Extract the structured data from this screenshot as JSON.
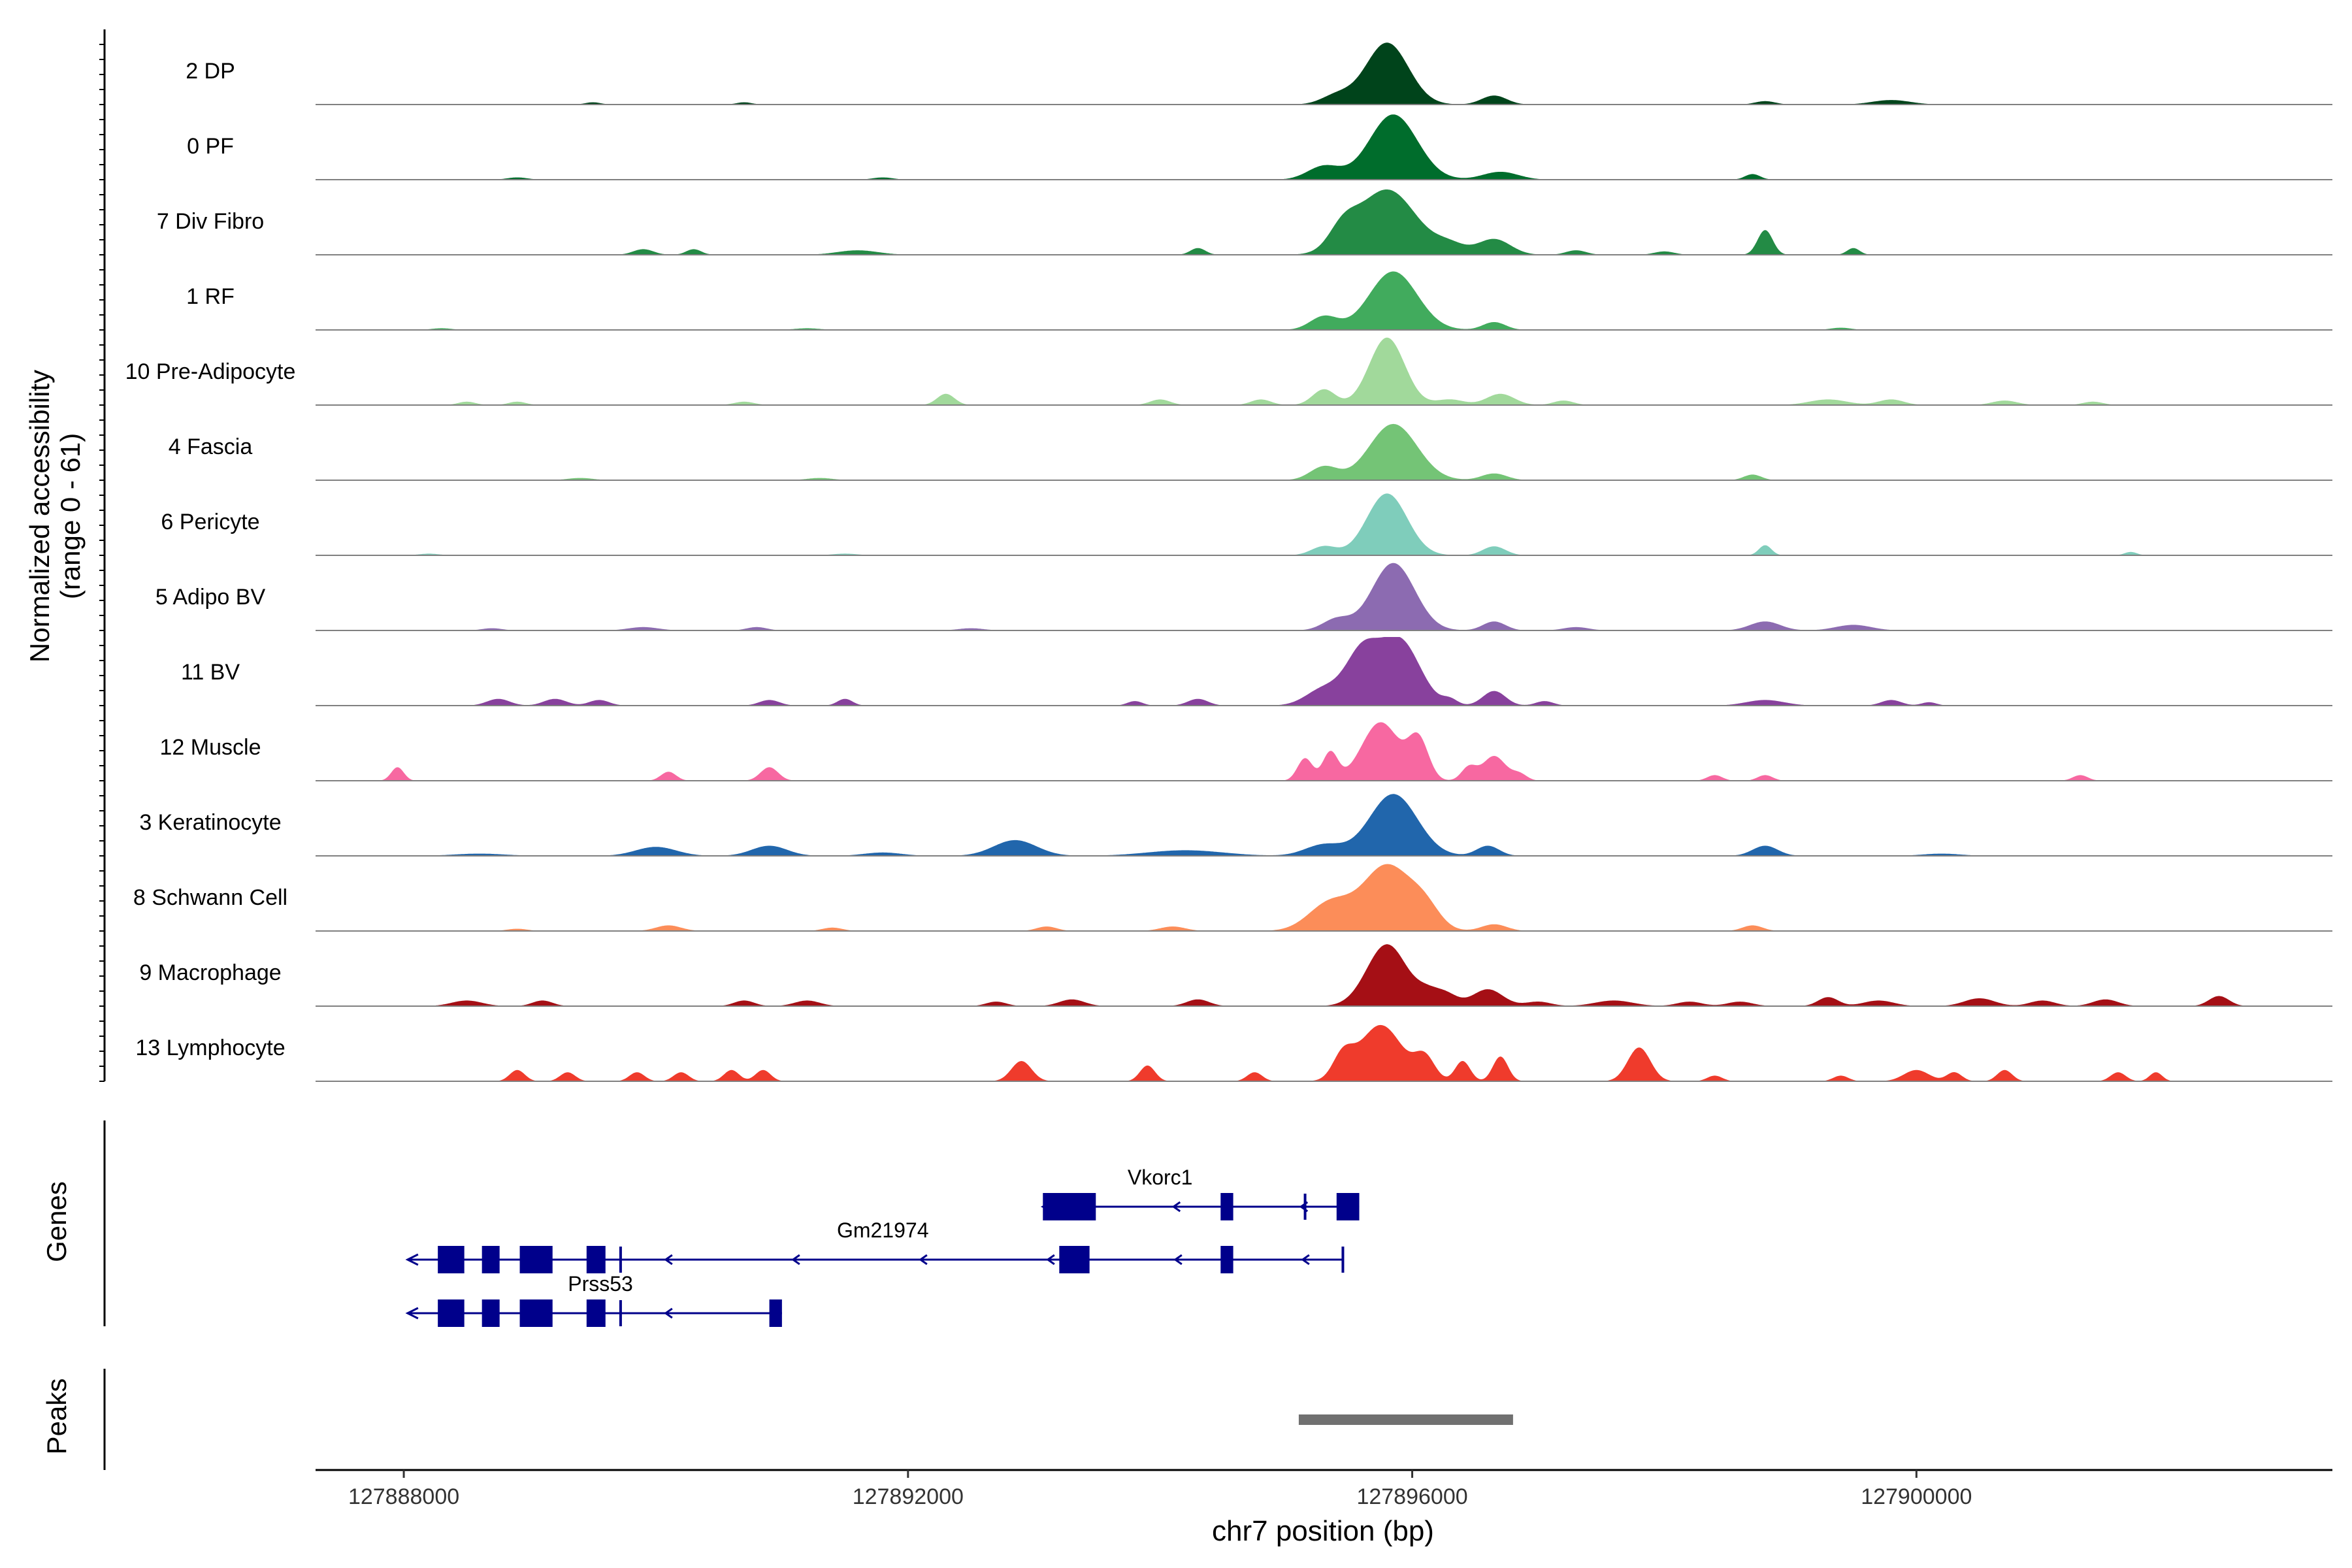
{
  "chart_data": {
    "type": "area",
    "title": "",
    "ylabel_line1": "Normalized accessibility",
    "ylabel_line2": "(range 0 - 61)",
    "ylim": [
      0,
      61
    ],
    "xlabel": "chr7 position (bp)",
    "xlim": [
      127887300,
      127903300
    ],
    "xticks": [
      127888000,
      127892000,
      127896000,
      127900000
    ],
    "xtick_labels": [
      "127888000",
      "127892000",
      "127896000",
      "127900000"
    ],
    "tracks": [
      {
        "name": "2 DP",
        "color": "#00441b",
        "peaks": [
          [
            127895800,
            55,
            170
          ],
          [
            127895400,
            8,
            120
          ],
          [
            127896650,
            8,
            100
          ],
          [
            127899800,
            4,
            150
          ],
          [
            127898800,
            3,
            80
          ],
          [
            127889500,
            2,
            60
          ],
          [
            127890700,
            2,
            60
          ]
        ]
      },
      {
        "name": "0 PF",
        "color": "#006d2c",
        "peaks": [
          [
            127895850,
            58,
            190
          ],
          [
            127895300,
            12,
            130
          ],
          [
            127896700,
            7,
            140
          ],
          [
            127898700,
            5,
            60
          ],
          [
            127888900,
            2,
            80
          ],
          [
            127891800,
            2,
            80
          ]
        ]
      },
      {
        "name": "7 Div Fibro",
        "color": "#238b45",
        "peaks": [
          [
            127895800,
            58,
            230
          ],
          [
            127895450,
            18,
            110
          ],
          [
            127896650,
            14,
            130
          ],
          [
            127896300,
            8,
            120
          ],
          [
            127898800,
            22,
            60
          ],
          [
            127894300,
            6,
            60
          ],
          [
            127890300,
            5,
            60
          ],
          [
            127889900,
            5,
            80
          ],
          [
            127891600,
            4,
            160
          ],
          [
            127899500,
            6,
            50
          ],
          [
            127897300,
            4,
            80
          ],
          [
            127898000,
            3,
            80
          ]
        ]
      },
      {
        "name": "1 RF",
        "color": "#41ab5d",
        "peaks": [
          [
            127895850,
            52,
            190
          ],
          [
            127895300,
            12,
            110
          ],
          [
            127896650,
            7,
            90
          ],
          [
            127888300,
            1.5,
            80
          ],
          [
            127891200,
            1.5,
            100
          ],
          [
            127899400,
            2,
            80
          ]
        ]
      },
      {
        "name": "10 Pre-Adipocyte",
        "color": "#a1d99b",
        "peaks": [
          [
            127895800,
            60,
            140
          ],
          [
            127895300,
            14,
            90
          ],
          [
            127896700,
            10,
            110
          ],
          [
            127896300,
            5,
            110
          ],
          [
            127892300,
            10,
            70
          ],
          [
            127894000,
            5,
            80
          ],
          [
            127894800,
            5,
            80
          ],
          [
            127897200,
            4,
            80
          ],
          [
            127899300,
            5,
            150
          ],
          [
            127899800,
            5,
            100
          ],
          [
            127888500,
            3,
            70
          ],
          [
            127888900,
            3,
            70
          ],
          [
            127890700,
            3,
            80
          ],
          [
            127900700,
            4,
            100
          ],
          [
            127901400,
            3,
            80
          ]
        ]
      },
      {
        "name": "4 Fascia",
        "color": "#74c476",
        "peaks": [
          [
            127895850,
            50,
            190
          ],
          [
            127895300,
            12,
            110
          ],
          [
            127896650,
            6,
            100
          ],
          [
            127898700,
            5,
            70
          ],
          [
            127889400,
            2,
            100
          ],
          [
            127891300,
            2,
            100
          ]
        ]
      },
      {
        "name": "6 Pericyte",
        "color": "#7fcdbb",
        "peaks": [
          [
            127895800,
            55,
            160
          ],
          [
            127895300,
            8,
            100
          ],
          [
            127896650,
            8,
            90
          ],
          [
            127898800,
            9,
            50
          ],
          [
            127901700,
            3,
            50
          ],
          [
            127888200,
            1.5,
            80
          ],
          [
            127891500,
            1.5,
            100
          ]
        ]
      },
      {
        "name": "5 Adipo BV",
        "color": "#8c6bb1",
        "peaks": [
          [
            127895850,
            60,
            170
          ],
          [
            127895400,
            10,
            110
          ],
          [
            127896650,
            8,
            90
          ],
          [
            127898800,
            8,
            120
          ],
          [
            127899500,
            5,
            140
          ],
          [
            127889900,
            3,
            120
          ],
          [
            127890800,
            3,
            80
          ],
          [
            127897300,
            3,
            100
          ],
          [
            127888700,
            2,
            80
          ],
          [
            127892500,
            2,
            100
          ]
        ]
      },
      {
        "name": "11 BV",
        "color": "#88419d",
        "peaks": [
          [
            127895900,
            58,
            160
          ],
          [
            127895600,
            45,
            130
          ],
          [
            127895300,
            15,
            140
          ],
          [
            127896650,
            13,
            90
          ],
          [
            127888750,
            6,
            90
          ],
          [
            127889200,
            6,
            90
          ],
          [
            127889550,
            5,
            80
          ],
          [
            127890900,
            5,
            80
          ],
          [
            127891500,
            6,
            60
          ],
          [
            127894300,
            6,
            80
          ],
          [
            127893800,
            4,
            60
          ],
          [
            127896300,
            5,
            60
          ],
          [
            127897050,
            4,
            70
          ],
          [
            127898800,
            5,
            150
          ],
          [
            127899800,
            5,
            80
          ],
          [
            127900100,
            3,
            60
          ]
        ]
      },
      {
        "name": "12 Muscle",
        "color": "#f768a1",
        "peaks": [
          [
            127895750,
            52,
            150
          ],
          [
            127896050,
            35,
            80
          ],
          [
            127895350,
            25,
            60
          ],
          [
            127895150,
            20,
            60
          ],
          [
            127896650,
            22,
            90
          ],
          [
            127896450,
            12,
            60
          ],
          [
            127887950,
            12,
            50
          ],
          [
            127890100,
            8,
            60
          ],
          [
            127890900,
            12,
            70
          ],
          [
            127898400,
            5,
            60
          ],
          [
            127898800,
            5,
            60
          ],
          [
            127901300,
            5,
            60
          ],
          [
            127896850,
            6,
            60
          ]
        ]
      },
      {
        "name": "3 Keratinocyte",
        "color": "#2166ac",
        "peaks": [
          [
            127895850,
            55,
            190
          ],
          [
            127895300,
            10,
            150
          ],
          [
            127896600,
            9,
            90
          ],
          [
            127890000,
            8,
            160
          ],
          [
            127890900,
            9,
            140
          ],
          [
            127892850,
            14,
            170
          ],
          [
            127898800,
            9,
            100
          ],
          [
            127894200,
            5,
            300
          ],
          [
            127888600,
            2,
            200
          ],
          [
            127891800,
            3,
            150
          ],
          [
            127900200,
            2,
            150
          ]
        ]
      },
      {
        "name": "8 Schwann Cell",
        "color": "#fc8d59",
        "peaks": [
          [
            127895800,
            58,
            190
          ],
          [
            127895350,
            25,
            170
          ],
          [
            127896100,
            18,
            120
          ],
          [
            127896650,
            6,
            100
          ],
          [
            127890100,
            5,
            100
          ],
          [
            127893100,
            4,
            80
          ],
          [
            127894100,
            4,
            100
          ],
          [
            127898700,
            5,
            80
          ],
          [
            127891400,
            3,
            80
          ],
          [
            127888900,
            2,
            80
          ]
        ]
      },
      {
        "name": "9 Macrophage",
        "color": "#a50f15",
        "peaks": [
          [
            127895800,
            55,
            160
          ],
          [
            127896250,
            12,
            100
          ],
          [
            127896600,
            15,
            120
          ],
          [
            127896100,
            7,
            80
          ],
          [
            127894300,
            6,
            90
          ],
          [
            127893300,
            6,
            100
          ],
          [
            127891200,
            5,
            100
          ],
          [
            127888500,
            5,
            120
          ],
          [
            127889100,
            5,
            80
          ],
          [
            127890700,
            5,
            80
          ],
          [
            127897600,
            5,
            150
          ],
          [
            127898200,
            4,
            100
          ],
          [
            127898600,
            4,
            100
          ],
          [
            127899300,
            8,
            80
          ],
          [
            127899700,
            5,
            120
          ],
          [
            127900500,
            7,
            120
          ],
          [
            127901000,
            5,
            100
          ],
          [
            127901500,
            6,
            100
          ],
          [
            127902400,
            9,
            80
          ],
          [
            127892700,
            4,
            80
          ],
          [
            127897000,
            4,
            100
          ]
        ]
      },
      {
        "name": "13 Lymphocyte",
        "color": "#ef3b2c",
        "peaks": [
          [
            127895750,
            50,
            170
          ],
          [
            127895450,
            20,
            80
          ],
          [
            127896100,
            20,
            80
          ],
          [
            127896400,
            18,
            60
          ],
          [
            127896700,
            22,
            60
          ],
          [
            127897800,
            30,
            90
          ],
          [
            127892900,
            18,
            80
          ],
          [
            127893900,
            14,
            60
          ],
          [
            127894750,
            8,
            60
          ],
          [
            127888900,
            10,
            60
          ],
          [
            127889300,
            8,
            60
          ],
          [
            127889850,
            8,
            60
          ],
          [
            127890600,
            10,
            60
          ],
          [
            127890850,
            10,
            60
          ],
          [
            127890200,
            8,
            60
          ],
          [
            127900000,
            10,
            100
          ],
          [
            127900300,
            8,
            60
          ],
          [
            127900700,
            10,
            60
          ],
          [
            127901600,
            8,
            60
          ],
          [
            127901900,
            8,
            50
          ],
          [
            127898400,
            5,
            60
          ],
          [
            127899400,
            5,
            60
          ]
        ]
      }
    ],
    "genes": {
      "color": "#00008b",
      "label": "Genes",
      "items": [
        {
          "name": "Vkorc1",
          "row": 0,
          "start": 127893070,
          "end": 127895580,
          "strand": "-",
          "exons": [
            [
              127893070,
              127893490
            ],
            [
              127894480,
              127894580
            ],
            [
              127895400,
              127895580
            ]
          ],
          "ticks": [
            127895150
          ]
        },
        {
          "name": "Gm21974",
          "row": 1,
          "start": 127888030,
          "end": 127895450,
          "strand": "-",
          "exons": [
            [
              127888270,
              127888480
            ],
            [
              127888620,
              127888760
            ],
            [
              127888920,
              127889180
            ],
            [
              127889450,
              127889600
            ],
            [
              127893200,
              127893440
            ],
            [
              127894480,
              127894580
            ]
          ],
          "ticks": [
            127889720,
            127895450
          ]
        },
        {
          "name": "Prss53",
          "row": 2,
          "start": 127888030,
          "end": 127891000,
          "strand": "-",
          "exons": [
            [
              127888270,
              127888480
            ],
            [
              127888620,
              127888760
            ],
            [
              127888920,
              127889180
            ],
            [
              127889450,
              127889600
            ],
            [
              127890900,
              127891000
            ]
          ],
          "ticks": [
            127889720
          ]
        }
      ]
    },
    "peaks_track": {
      "label": "Peaks",
      "color": "#707070",
      "regions": [
        [
          127895100,
          127896800
        ]
      ]
    }
  }
}
